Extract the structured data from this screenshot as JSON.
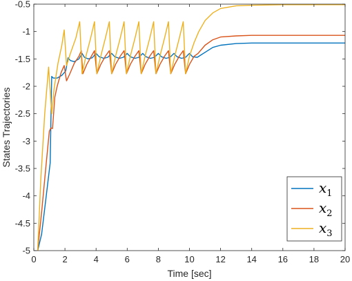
{
  "chart_data": {
    "type": "line",
    "title": "",
    "xlabel": "Time [sec]",
    "ylabel": "States Trajectories",
    "xlim": [
      0,
      20
    ],
    "ylim": [
      -5,
      -0.5
    ],
    "xticks": [
      0,
      2,
      4,
      6,
      8,
      10,
      12,
      14,
      16,
      18,
      20
    ],
    "xtick_labels": [
      "0",
      "2",
      "4",
      "6",
      "8",
      "10",
      "12",
      "14",
      "16",
      "18",
      "20"
    ],
    "yticks": [
      -5,
      -4.5,
      -4,
      -3.5,
      -3,
      -2.5,
      -2,
      -1.5,
      -1,
      -0.5
    ],
    "ytick_labels": [
      "-5",
      "-4.5",
      "-4",
      "-3.5",
      "-3",
      "-2.5",
      "-2",
      "-1.5",
      "-1",
      "-0.5"
    ],
    "grid": false,
    "legend_position": "bottom-right",
    "series": [
      {
        "name": "x1",
        "legend_base": "x",
        "legend_sub": "1",
        "color": "#0072BD",
        "points": [
          [
            0.25,
            -5
          ],
          [
            0.5,
            -4.7
          ],
          [
            0.8,
            -4.0
          ],
          [
            1.05,
            -3.4
          ],
          [
            1.15,
            -1.82
          ],
          [
            1.25,
            -1.85
          ],
          [
            1.5,
            -1.85
          ],
          [
            1.8,
            -1.8
          ],
          [
            2.05,
            -1.72
          ],
          [
            2.2,
            -1.48
          ],
          [
            2.35,
            -1.53
          ],
          [
            2.6,
            -1.55
          ],
          [
            2.9,
            -1.5
          ],
          [
            3.1,
            -1.4
          ],
          [
            3.25,
            -1.47
          ],
          [
            3.5,
            -1.5
          ],
          [
            3.75,
            -1.48
          ],
          [
            4.0,
            -1.4
          ],
          [
            4.2,
            -1.46
          ],
          [
            4.5,
            -1.49
          ],
          [
            4.75,
            -1.47
          ],
          [
            5.0,
            -1.4
          ],
          [
            5.2,
            -1.46
          ],
          [
            5.5,
            -1.49
          ],
          [
            5.75,
            -1.47
          ],
          [
            6.0,
            -1.4
          ],
          [
            6.2,
            -1.46
          ],
          [
            6.5,
            -1.49
          ],
          [
            6.75,
            -1.47
          ],
          [
            7.0,
            -1.4
          ],
          [
            7.2,
            -1.46
          ],
          [
            7.5,
            -1.49
          ],
          [
            7.75,
            -1.47
          ],
          [
            8.0,
            -1.4
          ],
          [
            8.2,
            -1.46
          ],
          [
            8.5,
            -1.49
          ],
          [
            8.75,
            -1.47
          ],
          [
            9.0,
            -1.4
          ],
          [
            9.2,
            -1.46
          ],
          [
            9.5,
            -1.49
          ],
          [
            9.75,
            -1.47
          ],
          [
            10.0,
            -1.4
          ],
          [
            10.2,
            -1.46
          ],
          [
            10.5,
            -1.47
          ],
          [
            11.0,
            -1.38
          ],
          [
            11.5,
            -1.29
          ],
          [
            12.0,
            -1.25
          ],
          [
            13.0,
            -1.22
          ],
          [
            14.0,
            -1.21
          ],
          [
            16.0,
            -1.21
          ],
          [
            20.0,
            -1.21
          ]
        ]
      },
      {
        "name": "x2",
        "legend_base": "x",
        "legend_sub": "2",
        "color": "#D95319",
        "points": [
          [
            0.25,
            -5
          ],
          [
            0.5,
            -4.3
          ],
          [
            0.8,
            -3.4
          ],
          [
            1.0,
            -2.82
          ],
          [
            1.1,
            -2.76
          ],
          [
            1.2,
            -2.77
          ],
          [
            1.35,
            -2.2
          ],
          [
            1.5,
            -2.0
          ],
          [
            1.75,
            -1.75
          ],
          [
            1.95,
            -1.62
          ],
          [
            2.1,
            -1.9
          ],
          [
            2.3,
            -1.78
          ],
          [
            2.6,
            -1.58
          ],
          [
            2.9,
            -1.45
          ],
          [
            3.05,
            -1.35
          ],
          [
            3.15,
            -1.77
          ],
          [
            3.4,
            -1.6
          ],
          [
            3.7,
            -1.45
          ],
          [
            3.9,
            -1.35
          ],
          [
            4.05,
            -1.77
          ],
          [
            4.3,
            -1.6
          ],
          [
            4.6,
            -1.45
          ],
          [
            4.85,
            -1.35
          ],
          [
            5.0,
            -1.77
          ],
          [
            5.25,
            -1.6
          ],
          [
            5.55,
            -1.45
          ],
          [
            5.8,
            -1.35
          ],
          [
            5.95,
            -1.77
          ],
          [
            6.2,
            -1.6
          ],
          [
            6.5,
            -1.45
          ],
          [
            6.75,
            -1.35
          ],
          [
            6.9,
            -1.77
          ],
          [
            7.15,
            -1.6
          ],
          [
            7.45,
            -1.45
          ],
          [
            7.7,
            -1.35
          ],
          [
            7.85,
            -1.77
          ],
          [
            8.1,
            -1.6
          ],
          [
            8.4,
            -1.45
          ],
          [
            8.65,
            -1.35
          ],
          [
            8.8,
            -1.77
          ],
          [
            9.05,
            -1.6
          ],
          [
            9.35,
            -1.45
          ],
          [
            9.6,
            -1.35
          ],
          [
            9.75,
            -1.77
          ],
          [
            10.0,
            -1.6
          ],
          [
            10.3,
            -1.45
          ],
          [
            10.55,
            -1.4
          ],
          [
            11.0,
            -1.25
          ],
          [
            11.5,
            -1.15
          ],
          [
            12.0,
            -1.1
          ],
          [
            13.0,
            -1.08
          ],
          [
            14.0,
            -1.07
          ],
          [
            16.0,
            -1.07
          ],
          [
            20.0,
            -1.07
          ]
        ]
      },
      {
        "name": "x3",
        "legend_base": "x",
        "legend_sub": "3",
        "color": "#EDB120",
        "points": [
          [
            0.25,
            -5
          ],
          [
            0.45,
            -3.7
          ],
          [
            0.7,
            -2.5
          ],
          [
            0.95,
            -1.65
          ],
          [
            1.15,
            -2.5
          ],
          [
            1.3,
            -2.05
          ],
          [
            1.55,
            -1.58
          ],
          [
            1.8,
            -1.25
          ],
          [
            1.95,
            -0.97
          ],
          [
            2.1,
            -1.62
          ],
          [
            2.35,
            -1.4
          ],
          [
            2.7,
            -1.12
          ],
          [
            2.95,
            -0.82
          ],
          [
            3.1,
            -1.77
          ],
          [
            3.35,
            -1.45
          ],
          [
            3.65,
            -1.12
          ],
          [
            3.9,
            -0.82
          ],
          [
            4.05,
            -1.77
          ],
          [
            4.3,
            -1.45
          ],
          [
            4.6,
            -1.12
          ],
          [
            4.85,
            -0.82
          ],
          [
            5.0,
            -1.77
          ],
          [
            5.25,
            -1.45
          ],
          [
            5.55,
            -1.12
          ],
          [
            5.8,
            -0.82
          ],
          [
            5.95,
            -1.77
          ],
          [
            6.2,
            -1.45
          ],
          [
            6.5,
            -1.12
          ],
          [
            6.75,
            -0.82
          ],
          [
            6.9,
            -1.77
          ],
          [
            7.15,
            -1.45
          ],
          [
            7.45,
            -1.12
          ],
          [
            7.7,
            -0.82
          ],
          [
            7.85,
            -1.77
          ],
          [
            8.1,
            -1.45
          ],
          [
            8.4,
            -1.12
          ],
          [
            8.65,
            -0.82
          ],
          [
            8.8,
            -1.77
          ],
          [
            9.05,
            -1.45
          ],
          [
            9.35,
            -1.12
          ],
          [
            9.6,
            -0.82
          ],
          [
            9.75,
            -1.77
          ],
          [
            10.0,
            -1.45
          ],
          [
            10.3,
            -1.2
          ],
          [
            10.6,
            -1.0
          ],
          [
            11.0,
            -0.8
          ],
          [
            11.5,
            -0.66
          ],
          [
            12.0,
            -0.58
          ],
          [
            13.0,
            -0.53
          ],
          [
            14.0,
            -0.52
          ],
          [
            16.0,
            -0.51
          ],
          [
            20.0,
            -0.51
          ]
        ]
      }
    ]
  }
}
